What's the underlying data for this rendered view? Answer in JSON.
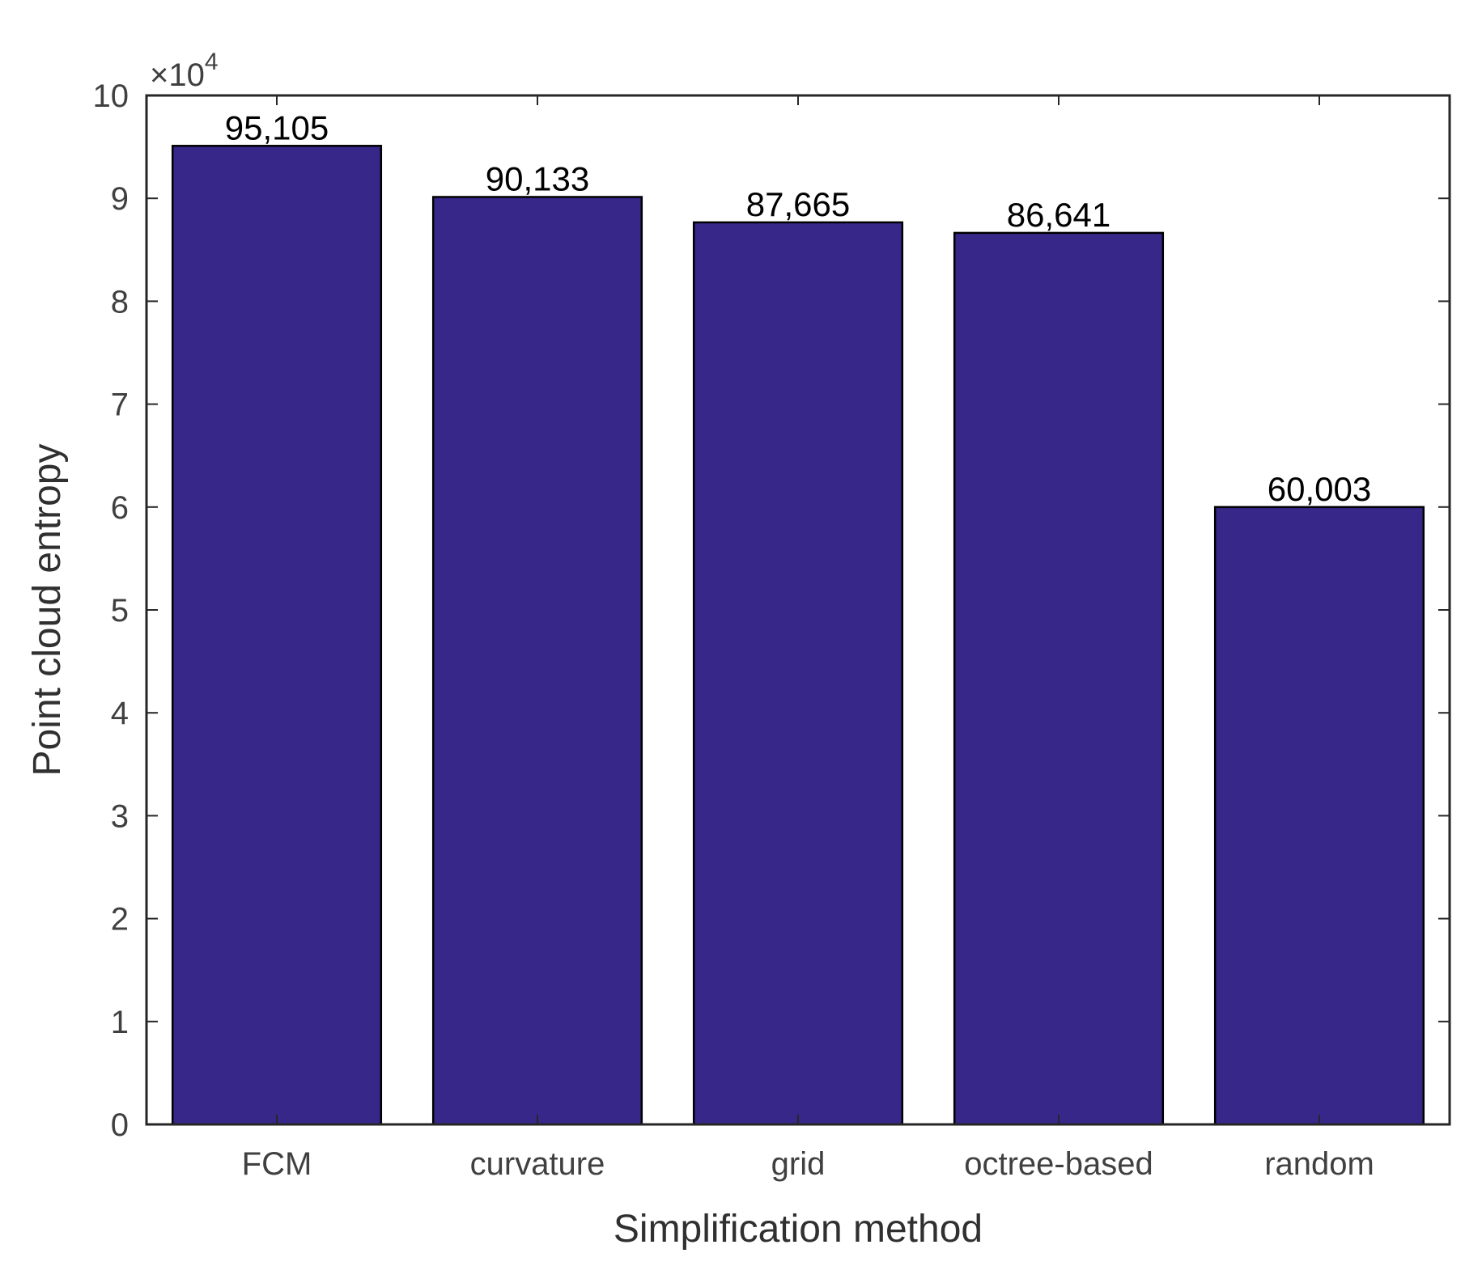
{
  "chart_data": {
    "type": "bar",
    "title": "",
    "xlabel": "Simplification method",
    "ylabel": "Point cloud entropy",
    "categories": [
      "FCM",
      "curvature",
      "grid",
      "octree-based",
      "random"
    ],
    "values": [
      95105,
      90133,
      87665,
      86641,
      60003
    ],
    "data_labels": [
      "95,105",
      "90,133",
      "87,665",
      "86,641",
      "60,003"
    ],
    "ylim": [
      0,
      100000
    ],
    "ytick_values": [
      0,
      10000,
      20000,
      30000,
      40000,
      50000,
      60000,
      70000,
      80000,
      90000,
      100000
    ],
    "ytick_labels": [
      "0",
      "1",
      "2",
      "3",
      "4",
      "5",
      "6",
      "7",
      "8",
      "9",
      "10"
    ],
    "y_multiplier": {
      "times": "×10",
      "exponent": "4"
    },
    "bar_color": "#362789",
    "grid": false,
    "legend": "none"
  }
}
